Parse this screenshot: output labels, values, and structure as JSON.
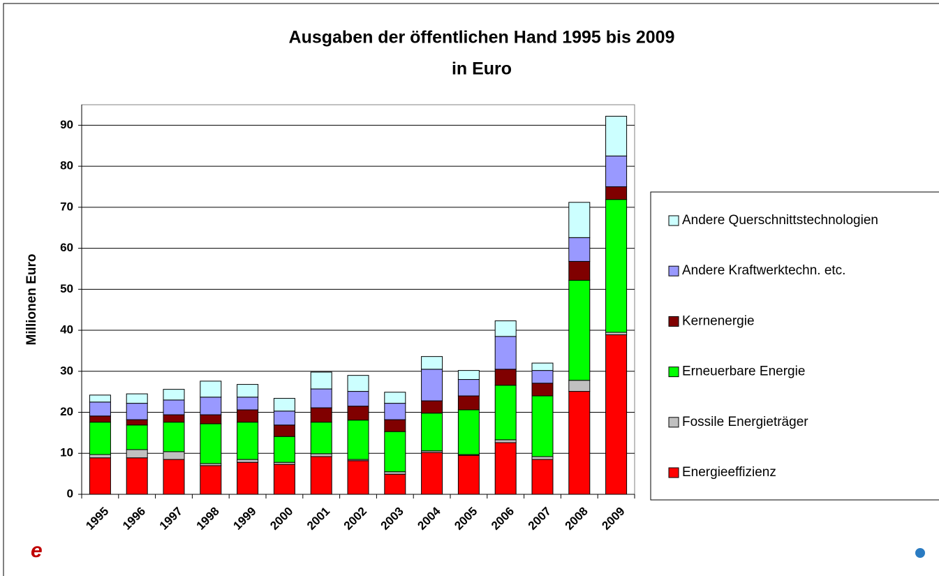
{
  "chart_data": {
    "type": "stacked_bar",
    "title": "Ausgaben der öffentlichen Hand 1995 bis 2009",
    "subtitle": "in Euro",
    "y_label": "Millionen Euro",
    "categories": [
      "1995",
      "1996",
      "1997",
      "1998",
      "1999",
      "2000",
      "2001",
      "2002",
      "2003",
      "2004",
      "2005",
      "2006",
      "2007",
      "2008",
      "2009"
    ],
    "series": [
      {
        "name": "Energieeffizienz",
        "color": "#ff0000",
        "values": [
          8.9,
          8.9,
          8.5,
          7.0,
          7.8,
          7.3,
          9.2,
          8.2,
          4.9,
          10.2,
          9.5,
          12.6,
          8.5,
          25.1,
          38.9
        ]
      },
      {
        "name": "Fossile Energieträger",
        "color": "#c0c0c0",
        "values": [
          0.8,
          2.0,
          1.9,
          0.5,
          0.7,
          0.5,
          0.7,
          0.3,
          0.6,
          0.4,
          0.2,
          0.7,
          0.7,
          2.7,
          0.6
        ]
      },
      {
        "name": "Erneuerbare Energie",
        "color": "#00ff00",
        "values": [
          7.9,
          6.0,
          7.2,
          9.7,
          9.1,
          6.3,
          7.7,
          9.6,
          9.8,
          9.2,
          10.9,
          13.3,
          14.8,
          24.4,
          32.4
        ]
      },
      {
        "name": "Kernenergie",
        "color": "#800000",
        "values": [
          1.5,
          1.3,
          1.8,
          2.2,
          3.0,
          2.8,
          3.5,
          3.4,
          2.9,
          3.0,
          3.4,
          3.9,
          3.1,
          4.6,
          3.1
        ]
      },
      {
        "name": "Andere Kraftwerktechn. etc.",
        "color": "#9999ff",
        "values": [
          3.4,
          4.0,
          3.6,
          4.3,
          3.1,
          3.4,
          4.6,
          3.6,
          4.0,
          7.7,
          4.0,
          8.0,
          3.1,
          5.8,
          7.5
        ]
      },
      {
        "name": "Andere Querschnittstechnologien",
        "color": "#ccffff",
        "values": [
          1.7,
          2.3,
          2.6,
          3.9,
          3.1,
          3.1,
          4.1,
          3.9,
          2.7,
          3.1,
          2.2,
          3.8,
          1.8,
          8.6,
          9.7
        ]
      }
    ],
    "ylim": [
      0,
      95
    ],
    "yticks": [
      0,
      10,
      20,
      30,
      40,
      50,
      60,
      70,
      80,
      90
    ],
    "grid": true,
    "legend": "right"
  }
}
